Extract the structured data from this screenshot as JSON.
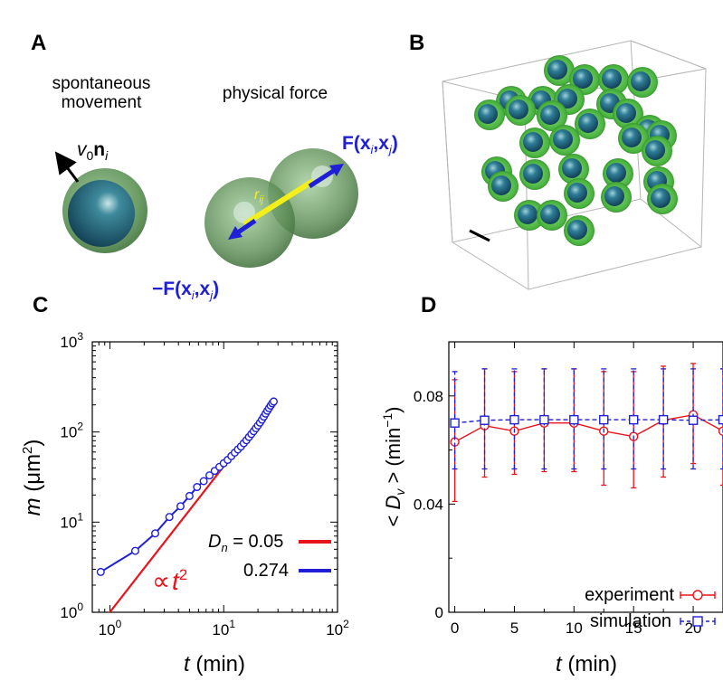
{
  "panels": {
    "a": {
      "label": "A",
      "caption_left_line1": "spontaneous",
      "caption_left_line2": "movement",
      "caption_right": "physical force",
      "v0_symbol": "v",
      "v0_sub": "0",
      "n_symbol": "n",
      "n_sub": "i",
      "force_pos": "F(",
      "force_neg": "−F(",
      "force_x": "x",
      "force_sub_i": "i",
      "force_sub_j": "j",
      "force_comma": ",",
      "force_close": ")",
      "r_symbol": "r",
      "r_sub": "ij"
    },
    "b": {
      "label": "B"
    },
    "c": {
      "label": "C"
    },
    "d": {
      "label": "D"
    }
  },
  "colors": {
    "red": "#e8141b",
    "blue": "#1f1fd6",
    "yellow": "#f2ef1a",
    "cell_green": "#5fb85a",
    "nucleus": "#1f5f74"
  },
  "chart_data": [
    {
      "type": "line",
      "panel": "C",
      "xscale": "log",
      "yscale": "log",
      "xlim": [
        0.7,
        100
      ],
      "ylim": [
        1,
        1000
      ],
      "xlabel_italic": "t",
      "xlabel_rest": " (min)",
      "ylabel_italic": "m",
      "ylabel_rest": " (μm",
      "ylabel_sup": "2",
      "ylabel_close": ")",
      "x_ticks": [
        {
          "value": 1,
          "base": "10",
          "exp": "0"
        },
        {
          "value": 10,
          "base": "10",
          "exp": "1"
        },
        {
          "value": 100,
          "base": "10",
          "exp": "2"
        }
      ],
      "y_ticks": [
        {
          "value": 1,
          "base": "10",
          "exp": "0"
        },
        {
          "value": 10,
          "base": "10",
          "exp": "1"
        },
        {
          "value": 100,
          "base": "10",
          "exp": "2"
        },
        {
          "value": 1000,
          "base": "10",
          "exp": "3"
        }
      ],
      "annotation_prop": "∝",
      "annotation_t": "t",
      "annotation_exp": "2",
      "legend_param": "D",
      "legend_param_sub": "n",
      "series": [
        {
          "name": " = 0.05",
          "color": "#e8141b",
          "marker": "none",
          "x": [
            0.8,
            28
          ],
          "y": [
            0.7,
            220
          ]
        },
        {
          "name": "0.274",
          "color": "#1f1fd6",
          "marker": "circle",
          "x": [
            0.83,
            1.67,
            2.5,
            3.33,
            4.17,
            5.0,
            5.83,
            6.67,
            7.5,
            8.33,
            9.17,
            10.0,
            10.83,
            11.67,
            12.5,
            13.33,
            14.17,
            15.0,
            15.83,
            16.67,
            17.5,
            18.33,
            19.17,
            20.0,
            20.83,
            21.67,
            22.5,
            23.33,
            24.17,
            25.0,
            25.83,
            26.67,
            27.5
          ],
          "y": [
            2.8,
            4.8,
            7.5,
            11.4,
            15.0,
            19.5,
            24.5,
            28.5,
            33.0,
            37.0,
            41.0,
            45.0,
            49.0,
            54.0,
            59.0,
            64.0,
            69.0,
            75.0,
            81.0,
            88.0,
            95.0,
            102.0,
            110.0,
            118.0,
            127.0,
            137.0,
            148.0,
            160.0,
            172.0,
            184.0,
            196.0,
            208.0,
            218.0
          ]
        }
      ]
    },
    {
      "type": "line",
      "panel": "D",
      "xlim": [
        -0.5,
        22.5
      ],
      "ylim": [
        0,
        0.1
      ],
      "xlabel_italic": "t",
      "xlabel_rest": " (min)",
      "ylabel_pre": "< ",
      "ylabel_italic": "D",
      "ylabel_sub": "v",
      "ylabel_post": " > (min",
      "ylabel_sup": "−1",
      "ylabel_close": ")",
      "x_ticks": [
        0,
        5,
        10,
        15,
        20
      ],
      "y_ticks": [
        {
          "value": 0,
          "label": "0"
        },
        {
          "value": 0.04,
          "label": "0.04"
        },
        {
          "value": 0.08,
          "label": "0.08"
        }
      ],
      "series": [
        {
          "name": "experiment",
          "color": "#e8141b",
          "marker": "circle",
          "dash": "solid",
          "x": [
            0,
            2.5,
            5,
            7.5,
            10,
            12.5,
            15,
            17.5,
            20,
            22.5
          ],
          "y": [
            0.063,
            0.069,
            0.067,
            0.07,
            0.07,
            0.067,
            0.065,
            0.071,
            0.073,
            0.067
          ],
          "err_low": [
            0.041,
            0.05,
            0.051,
            0.052,
            0.052,
            0.047,
            0.046,
            0.05,
            0.055,
            0.047
          ],
          "err_high": [
            0.086,
            0.09,
            0.089,
            0.09,
            0.09,
            0.089,
            0.089,
            0.091,
            0.092,
            0.09
          ]
        },
        {
          "name": "simulation",
          "color": "#1f1fd6",
          "marker": "square",
          "dash": "dashed",
          "x": [
            0,
            2.5,
            5,
            7.5,
            10,
            12.5,
            15,
            17.5,
            20,
            22.5
          ],
          "y": [
            0.07,
            0.071,
            0.0712,
            0.0712,
            0.0712,
            0.0712,
            0.0712,
            0.0712,
            0.071,
            0.0712
          ],
          "err_low": [
            0.053,
            0.053,
            0.053,
            0.053,
            0.053,
            0.053,
            0.053,
            0.053,
            0.053,
            0.053
          ],
          "err_high": [
            0.089,
            0.09,
            0.09,
            0.09,
            0.09,
            0.09,
            0.09,
            0.09,
            0.09,
            0.09
          ]
        }
      ]
    }
  ]
}
